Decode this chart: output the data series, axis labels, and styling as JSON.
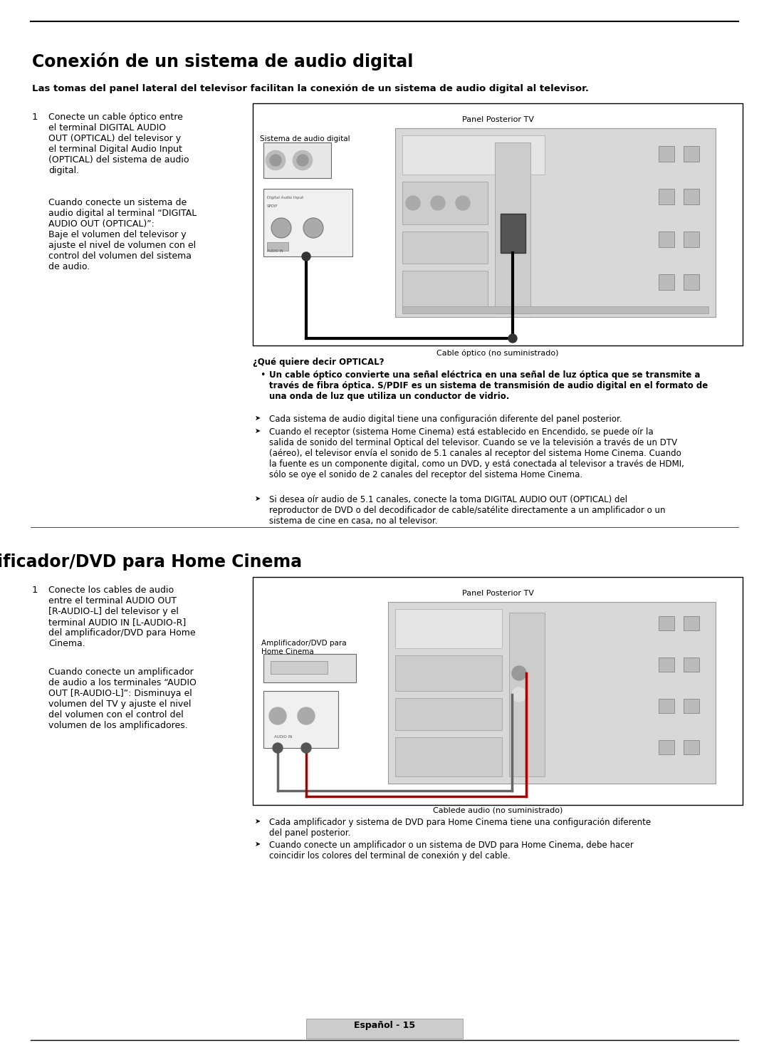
{
  "bg_color": "#ffffff",
  "section1_title": "Conexión de un sistema de audio digital",
  "section1_subtitle": "Las tomas del panel lateral del televisor facilitan la conexión de un sistema de audio digital al televisor.",
  "section1_step1_num": "1",
  "section1_step1_text_a": "Conecte un cable óptico entre\nel terminal DIGITAL AUDIO\nOUT (OPTICAL) del televisor y\nel terminal Digital Audio Input\n(OPTICAL) del sistema de audio\ndigital.",
  "section1_step1_text_b": "Cuando conecte un sistema de\naudio digital al terminal “DIGITAL\nAUDIO OUT (OPTICAL)”:\nBaje el volumen del televisor y\najuste el nivel de volumen con el\ncontrol del volumen del sistema\nde audio.",
  "section1_panel_label": "Panel Posterior TV",
  "section1_device_label": "Sistema de audio digital",
  "section1_cable_label": "Cable óptico (no suministrado)",
  "section1_optical_title": "¿Qué quiere decir OPTICAL?",
  "section1_optical_bullet": "Un cable óptico convierte una señal eléctrica en una señal de luz óptica que se transmite a\ntravés de fibra óptica. S/PDIF es un sistema de transmisión de audio digital en el formato de\nuna onda de luz que utiliza un conductor de vidrio.",
  "section1_arrow1": "Cada sistema de audio digital tiene una configuración diferente del panel posterior.",
  "section1_arrow2": "Cuando el receptor (sistema Home Cinema) está establecido en Encendido, se puede oír la\nsalida de sonido del terminal Optical del televisor. Cuando se ve la televisión a través de un DTV\n(aéreo), el televisor envía el sonido de 5.1 canales al receptor del sistema Home Cinema. Cuando\nla fuente es un componente digital, como un DVD, y está conectada al televisor a través de HDMI,\nsólo se oye el sonido de 2 canales del receptor del sistema Home Cinema.",
  "section1_arrow3": "Si desea oír audio de 5.1 canales, conecte la toma DIGITAL AUDIO OUT (OPTICAL) del\nreproductor de DVD o del decodificador de cable/satélite directamente a un amplificador o un\nsistema de cine en casa, no al televisor.",
  "section2_title": "Conexión de un amplificador/DVD para Home Cinema",
  "section2_step1_num": "1",
  "section2_step1_text_a": "Conecte los cables de audio\nentre el terminal AUDIO OUT\n[R-AUDIO-L] del televisor y el\nterminal AUDIO IN [L-AUDIO-R]\ndel amplificador/DVD para Home\nCinema.",
  "section2_step1_text_b": "Cuando conecte un amplificador\nde audio a los terminales “AUDIO\nOUT [R-AUDIO-L]”: Disminuya el\nvolumen del TV y ajuste el nivel\ndel volumen con el control del\nvolumen de los amplificadores.",
  "section2_panel_label": "Panel Posterior TV",
  "section2_device_label": "Amplificador/DVD para\nHome Cinema",
  "section2_cable_label": "Cablede audio (no suministrado)",
  "section2_arrow1": "Cada amplificador y sistema de DVD para Home Cinema tiene una configuración diferente\ndel panel posterior.",
  "section2_arrow2": "Cuando conecte un amplificador o un sistema de DVD para Home Cinema, debe hacer\ncoincidir los colores del terminal de conexión y del cable.",
  "footer": "Español - 15"
}
